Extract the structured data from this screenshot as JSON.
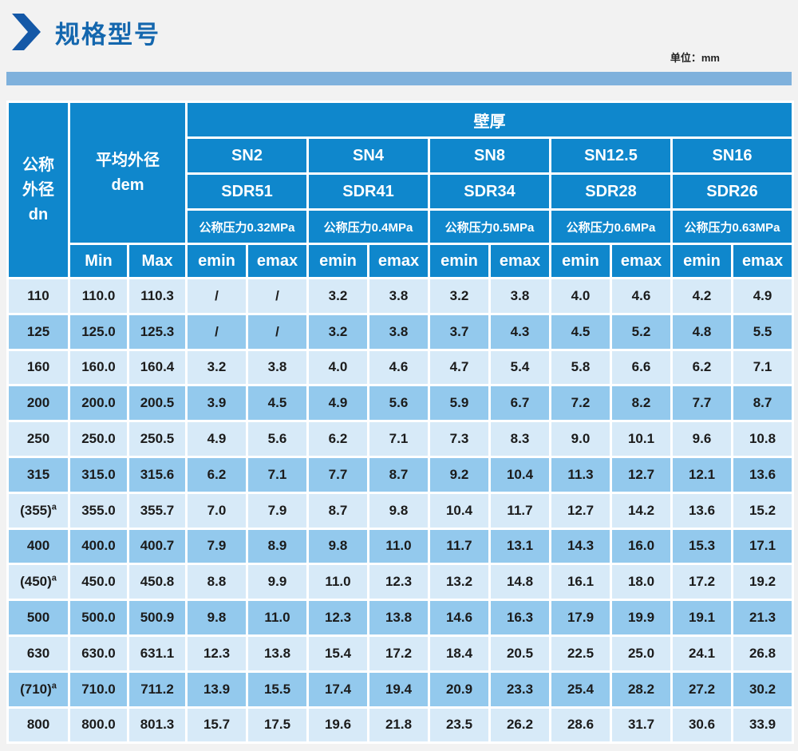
{
  "page": {
    "title": "规格型号",
    "unit_label": "单位：mm"
  },
  "colors": {
    "header_blue": "#0F87CC",
    "row_light": "#D7EAF8",
    "row_dark": "#93C9ED",
    "accent_blue": "#1467AE",
    "divider_bar_blue": "#7FB1DC"
  },
  "table": {
    "col1_header": "公称\n外径\ndn",
    "col2_header": "平均外径\ndem",
    "wall_header": "壁厚",
    "min_label": "Min",
    "max_label": "Max",
    "emin_label": "emin",
    "emax_label": "emax",
    "sn_groups": [
      {
        "sn": "SN2",
        "sdr": "SDR51",
        "pressure": "公称压力0.32MPa"
      },
      {
        "sn": "SN4",
        "sdr": "SDR41",
        "pressure": "公称压力0.4MPa"
      },
      {
        "sn": "SN8",
        "sdr": "SDR34",
        "pressure": "公称压力0.5MPa"
      },
      {
        "sn": "SN12.5",
        "sdr": "SDR28",
        "pressure": "公称压力0.6MPa"
      },
      {
        "sn": "SN16",
        "sdr": "SDR26",
        "pressure": "公称压力0.63MPa"
      }
    ],
    "rows": [
      {
        "dn": "110",
        "sup": "",
        "min": "110.0",
        "max": "110.3",
        "values": [
          "/",
          "/",
          "3.2",
          "3.8",
          "3.2",
          "3.8",
          "4.0",
          "4.6",
          "4.2",
          "4.9"
        ]
      },
      {
        "dn": "125",
        "sup": "",
        "min": "125.0",
        "max": "125.3",
        "values": [
          "/",
          "/",
          "3.2",
          "3.8",
          "3.7",
          "4.3",
          "4.5",
          "5.2",
          "4.8",
          "5.5"
        ]
      },
      {
        "dn": "160",
        "sup": "",
        "min": "160.0",
        "max": "160.4",
        "values": [
          "3.2",
          "3.8",
          "4.0",
          "4.6",
          "4.7",
          "5.4",
          "5.8",
          "6.6",
          "6.2",
          "7.1"
        ]
      },
      {
        "dn": "200",
        "sup": "",
        "min": "200.0",
        "max": "200.5",
        "values": [
          "3.9",
          "4.5",
          "4.9",
          "5.6",
          "5.9",
          "6.7",
          "7.2",
          "8.2",
          "7.7",
          "8.7"
        ]
      },
      {
        "dn": "250",
        "sup": "",
        "min": "250.0",
        "max": "250.5",
        "values": [
          "4.9",
          "5.6",
          "6.2",
          "7.1",
          "7.3",
          "8.3",
          "9.0",
          "10.1",
          "9.6",
          "10.8"
        ]
      },
      {
        "dn": "315",
        "sup": "",
        "min": "315.0",
        "max": "315.6",
        "values": [
          "6.2",
          "7.1",
          "7.7",
          "8.7",
          "9.2",
          "10.4",
          "11.3",
          "12.7",
          "12.1",
          "13.6"
        ]
      },
      {
        "dn": "(355)",
        "sup": "a",
        "min": "355.0",
        "max": "355.7",
        "values": [
          "7.0",
          "7.9",
          "8.7",
          "9.8",
          "10.4",
          "11.7",
          "12.7",
          "14.2",
          "13.6",
          "15.2"
        ]
      },
      {
        "dn": "400",
        "sup": "",
        "min": "400.0",
        "max": "400.7",
        "values": [
          "7.9",
          "8.9",
          "9.8",
          "11.0",
          "11.7",
          "13.1",
          "14.3",
          "16.0",
          "15.3",
          "17.1"
        ]
      },
      {
        "dn": "(450)",
        "sup": "a",
        "min": "450.0",
        "max": "450.8",
        "values": [
          "8.8",
          "9.9",
          "11.0",
          "12.3",
          "13.2",
          "14.8",
          "16.1",
          "18.0",
          "17.2",
          "19.2"
        ]
      },
      {
        "dn": "500",
        "sup": "",
        "min": "500.0",
        "max": "500.9",
        "values": [
          "9.8",
          "11.0",
          "12.3",
          "13.8",
          "14.6",
          "16.3",
          "17.9",
          "19.9",
          "19.1",
          "21.3"
        ]
      },
      {
        "dn": "630",
        "sup": "",
        "min": "630.0",
        "max": "631.1",
        "values": [
          "12.3",
          "13.8",
          "15.4",
          "17.2",
          "18.4",
          "20.5",
          "22.5",
          "25.0",
          "24.1",
          "26.8"
        ]
      },
      {
        "dn": "(710)",
        "sup": "a",
        "min": "710.0",
        "max": "711.2",
        "values": [
          "13.9",
          "15.5",
          "17.4",
          "19.4",
          "20.9",
          "23.3",
          "25.4",
          "28.2",
          "27.2",
          "30.2"
        ]
      },
      {
        "dn": "800",
        "sup": "",
        "min": "800.0",
        "max": "801.3",
        "values": [
          "15.7",
          "17.5",
          "19.6",
          "21.8",
          "23.5",
          "26.2",
          "28.6",
          "31.7",
          "30.6",
          "33.9"
        ]
      }
    ]
  }
}
